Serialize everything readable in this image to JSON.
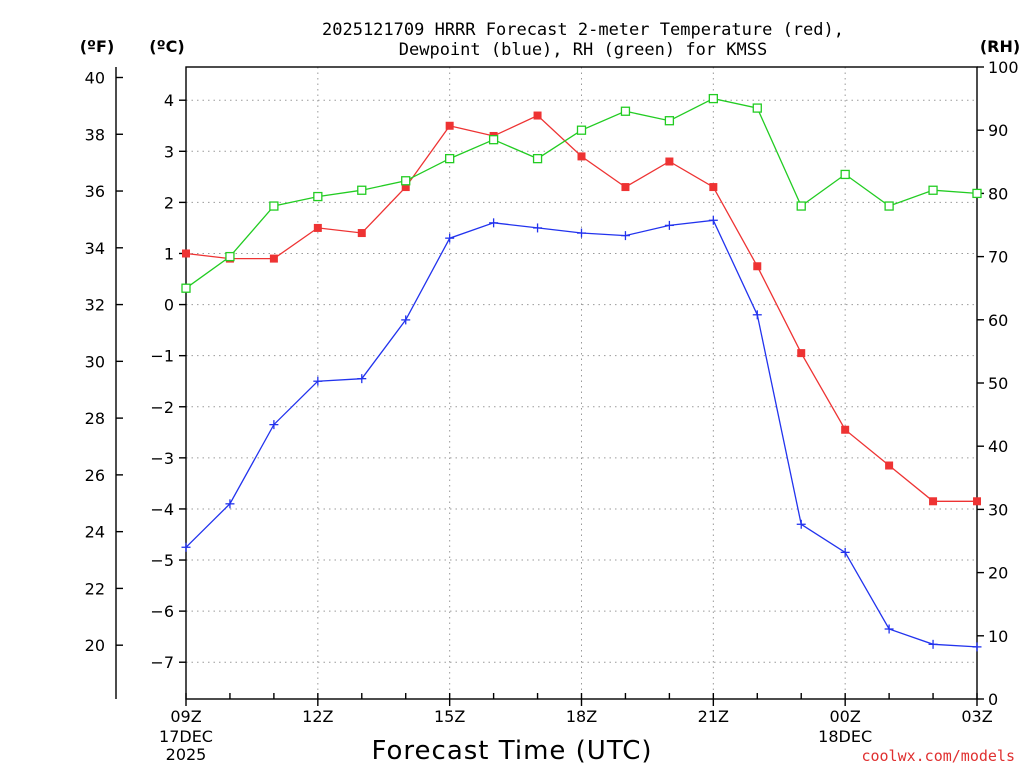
{
  "chart_data": {
    "type": "line",
    "title_line1": "2025121709 HRRR Forecast 2-meter Temperature (red),",
    "title_line2": "Dewpoint (blue), RH (green) for KMSS",
    "xlabel": "Forecast Time (UTC)",
    "credit": "coolwx.com/models",
    "unit_f": "(ºF)",
    "unit_c": "(ºC)",
    "unit_rh": "(RH)",
    "x_hours": [
      9,
      10,
      11,
      12,
      13,
      14,
      15,
      16,
      17,
      18,
      19,
      20,
      21,
      22,
      23,
      24,
      25,
      26,
      27
    ],
    "x_ticks": [
      {
        "hour": 9,
        "label": "09Z",
        "sub1": "17DEC",
        "sub2": "2025"
      },
      {
        "hour": 12,
        "label": "12Z",
        "sub1": "",
        "sub2": ""
      },
      {
        "hour": 15,
        "label": "15Z",
        "sub1": "",
        "sub2": ""
      },
      {
        "hour": 18,
        "label": "18Z",
        "sub1": "",
        "sub2": ""
      },
      {
        "hour": 21,
        "label": "21Z",
        "sub1": "",
        "sub2": ""
      },
      {
        "hour": 24,
        "label": "00Z",
        "sub1": "18DEC",
        "sub2": ""
      },
      {
        "hour": 27,
        "label": "03Z",
        "sub1": "",
        "sub2": ""
      }
    ],
    "xlim": [
      9,
      27
    ],
    "ylim_c": [
      -7.72,
      4.65
    ],
    "ylim_rh": [
      0,
      100
    ],
    "y_ticks_c": [
      "-7",
      "-6",
      "-5",
      "-4",
      "-3",
      "-2",
      "-1",
      "0",
      "1",
      "2",
      "3",
      "4"
    ],
    "y_ticks_f": [
      "20",
      "22",
      "24",
      "26",
      "28",
      "30",
      "32",
      "34",
      "36",
      "38",
      "40"
    ],
    "y_ticks_rh": [
      "0",
      "10",
      "20",
      "30",
      "40",
      "50",
      "60",
      "70",
      "80",
      "90",
      "100"
    ],
    "series": [
      {
        "name": "Temperature",
        "unit": "C",
        "color": "#ee3333",
        "marker": "filled-square",
        "values": [
          1.0,
          0.9,
          0.9,
          1.5,
          1.4,
          2.3,
          3.5,
          3.3,
          3.7,
          2.9,
          2.3,
          2.8,
          2.3,
          0.75,
          -0.95,
          -2.45,
          -3.15,
          -3.85,
          -3.85
        ]
      },
      {
        "name": "Dewpoint",
        "unit": "C",
        "color": "#2233ee",
        "marker": "plus",
        "values": [
          -4.75,
          -3.9,
          -2.35,
          -1.5,
          -1.45,
          -0.3,
          1.3,
          1.6,
          1.5,
          1.4,
          1.35,
          1.55,
          1.65,
          -0.2,
          -4.3,
          -4.85,
          -6.35,
          -6.65,
          -6.7
        ]
      },
      {
        "name": "RH",
        "unit": "%",
        "color": "#22cc22",
        "marker": "open-square",
        "values": [
          65,
          70,
          78,
          79.5,
          80.5,
          82,
          85.5,
          88.5,
          85.5,
          90,
          93,
          91.5,
          95,
          93.5,
          78,
          83,
          78,
          80.5,
          80
        ]
      }
    ]
  }
}
